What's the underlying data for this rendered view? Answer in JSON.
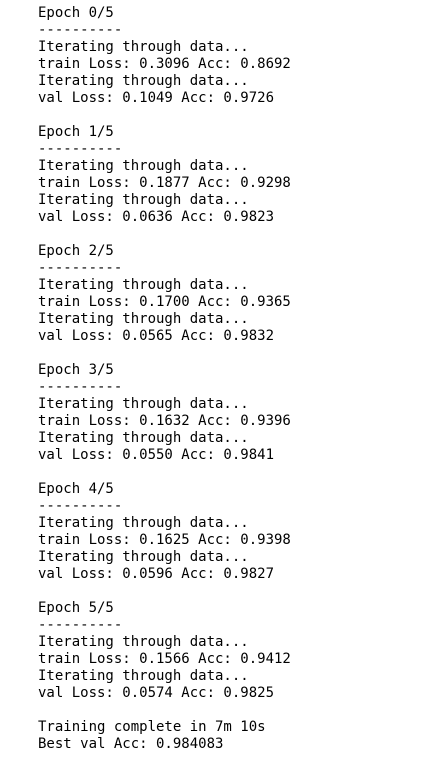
{
  "output": {
    "epochs": [
      {
        "header": "Epoch 0/5",
        "separator": "----------",
        "train_iter": "Iterating through data...",
        "train_result": "train Loss: 0.3096 Acc: 0.8692",
        "val_iter": "Iterating through data...",
        "val_result": "val Loss: 0.1049 Acc: 0.9726"
      },
      {
        "header": "Epoch 1/5",
        "separator": "----------",
        "train_iter": "Iterating through data...",
        "train_result": "train Loss: 0.1877 Acc: 0.9298",
        "val_iter": "Iterating through data...",
        "val_result": "val Loss: 0.0636 Acc: 0.9823"
      },
      {
        "header": "Epoch 2/5",
        "separator": "----------",
        "train_iter": "Iterating through data...",
        "train_result": "train Loss: 0.1700 Acc: 0.9365",
        "val_iter": "Iterating through data...",
        "val_result": "val Loss: 0.0565 Acc: 0.9832"
      },
      {
        "header": "Epoch 3/5",
        "separator": "----------",
        "train_iter": "Iterating through data...",
        "train_result": "train Loss: 0.1632 Acc: 0.9396",
        "val_iter": "Iterating through data...",
        "val_result": "val Loss: 0.0550 Acc: 0.9841"
      },
      {
        "header": "Epoch 4/5",
        "separator": "----------",
        "train_iter": "Iterating through data...",
        "train_result": "train Loss: 0.1625 Acc: 0.9398",
        "val_iter": "Iterating through data...",
        "val_result": "val Loss: 0.0596 Acc: 0.9827"
      },
      {
        "header": "Epoch 5/5",
        "separator": "----------",
        "train_iter": "Iterating through data...",
        "train_result": "train Loss: 0.1566 Acc: 0.9412",
        "val_iter": "Iterating through data...",
        "val_result": "val Loss: 0.0574 Acc: 0.9825"
      }
    ],
    "summary": {
      "complete": "Training complete in 7m 10s",
      "best": "Best val Acc: 0.984083"
    }
  }
}
